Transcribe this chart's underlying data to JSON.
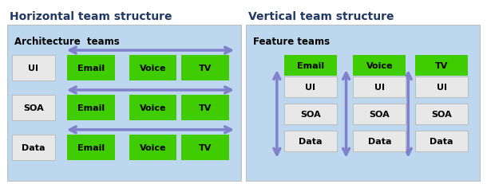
{
  "title_left": "Horizontal team structure",
  "title_right": "Vertical team structure",
  "subtitle_left": "Architecture  teams",
  "subtitle_right": "Feature teams",
  "arch_labels": [
    "UI",
    "SOA",
    "Data"
  ],
  "feature_labels": [
    "Email",
    "Voice",
    "TV"
  ],
  "bg_color": "#BDD7EE",
  "green_color": "#3FCC00",
  "box_color": "#E8E8E8",
  "arrow_color": "#8080CC",
  "title_fontsize": 10,
  "subtitle_fontsize": 8.5,
  "label_fontsize": 8,
  "title_color": "#1F3864"
}
